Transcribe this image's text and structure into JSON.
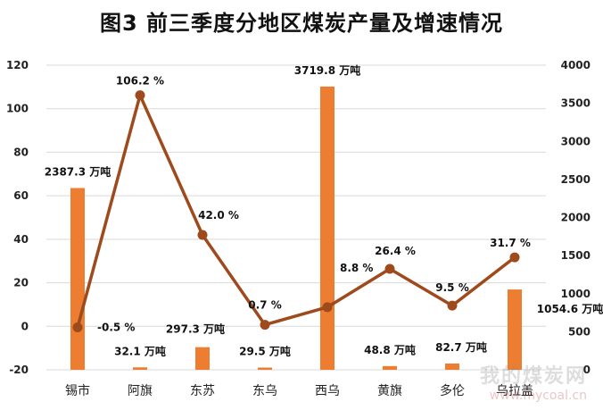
{
  "chart_data": {
    "type": "bar+line",
    "title": "图3 前三季度分地区煤炭产量及增速情况",
    "categories": [
      "锡市",
      "阿旗",
      "东苏",
      "东乌",
      "西乌",
      "黄旗",
      "多伦",
      "乌拉盖"
    ],
    "series": [
      {
        "type": "bar",
        "axis": "right",
        "values": [
          2387.3,
          32.1,
          297.3,
          29.5,
          3719.8,
          48.8,
          82.7,
          1054.6
        ],
        "labels": [
          "2387.3 万吨",
          "32.1 万吨",
          "297.3 万吨",
          "29.5 万吨",
          "3719.8 万吨",
          "48.8 万吨",
          "82.7 万吨",
          "1054.6 万吨"
        ],
        "color": "#ED7D31"
      },
      {
        "type": "line",
        "axis": "left",
        "values": [
          -0.5,
          106.2,
          42.0,
          0.7,
          8.8,
          26.4,
          9.5,
          31.7
        ],
        "labels": [
          "-0.5 %",
          "106.2 %",
          "42.0 %",
          "0.7 %",
          "8.8 %",
          "26.4 %",
          "9.5 %",
          "31.7 %"
        ],
        "color": "#9E4A1C"
      }
    ],
    "left_axis": {
      "min": -20,
      "max": 120,
      "ticks": [
        "120",
        "100",
        "80",
        "60",
        "40",
        "20",
        "0",
        "-20"
      ]
    },
    "right_axis": {
      "min": 0,
      "max": 4000,
      "ticks": [
        "4000",
        "3500",
        "3000",
        "2500",
        "2000",
        "1500",
        "1000",
        "500",
        "0"
      ]
    },
    "grid": true,
    "legend": "none"
  },
  "watermark": {
    "text": "我的煤炭网",
    "url": "www.mycoal.cn"
  }
}
